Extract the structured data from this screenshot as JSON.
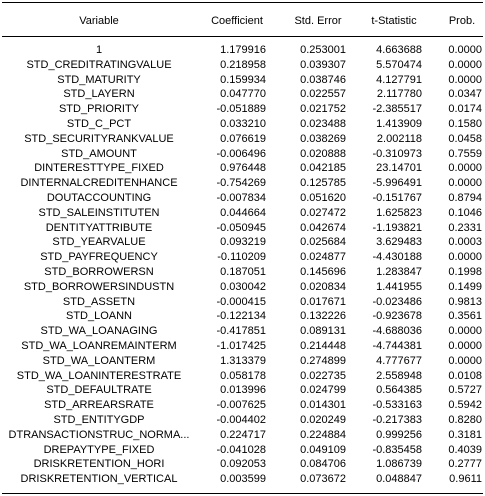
{
  "table": {
    "headers": {
      "variable": "Variable",
      "coefficient": "Coefficient",
      "std_error": "Std. Error",
      "t_statistic": "t-Statistic",
      "prob": "Prob."
    },
    "rows": [
      [
        "1",
        "1.179916",
        "0.253001",
        "4.663688",
        "0.0000"
      ],
      [
        "STD_CREDITRATINGVALUE",
        "0.218958",
        "0.039307",
        "5.570474",
        "0.0000"
      ],
      [
        "STD_MATURITY",
        "0.159934",
        "0.038746",
        "4.127791",
        "0.0000"
      ],
      [
        "STD_LAYERN",
        "0.047770",
        "0.022557",
        "2.117780",
        "0.0347"
      ],
      [
        "STD_PRIORITY",
        "-0.051889",
        "0.021752",
        "-2.385517",
        "0.0174"
      ],
      [
        "STD_C_PCT",
        "0.033210",
        "0.023488",
        "1.413909",
        "0.1580"
      ],
      [
        "STD_SECURITYRANKVALUE",
        "0.076619",
        "0.038269",
        "2.002118",
        "0.0458"
      ],
      [
        "STD_AMOUNT",
        "-0.006496",
        "0.020888",
        "-0.310973",
        "0.7559"
      ],
      [
        "DINTERESTTYPE_FIXED",
        "0.976448",
        "0.042185",
        "23.14701",
        "0.0000"
      ],
      [
        "DINTERNALCREDITENHANCE",
        "-0.754269",
        "0.125785",
        "-5.996491",
        "0.0000"
      ],
      [
        "DOUTACCOUNTING",
        "-0.007834",
        "0.051620",
        "-0.151767",
        "0.8794"
      ],
      [
        "STD_SALEINSTITUTEN",
        "0.044664",
        "0.027472",
        "1.625823",
        "0.1046"
      ],
      [
        "DENTITYATTRIBUTE",
        "-0.050945",
        "0.042674",
        "-1.193821",
        "0.2331"
      ],
      [
        "STD_YEARVALUE",
        "0.093219",
        "0.025684",
        "3.629483",
        "0.0003"
      ],
      [
        "STD_PAYFREQUENCY",
        "-0.110209",
        "0.024877",
        "-4.430188",
        "0.0000"
      ],
      [
        "STD_BORROWERSN",
        "0.187051",
        "0.145696",
        "1.283847",
        "0.1998"
      ],
      [
        "STD_BORROWERSINDUSTN",
        "0.030042",
        "0.020834",
        "1.441955",
        "0.1499"
      ],
      [
        "STD_ASSETN",
        "-0.000415",
        "0.017671",
        "-0.023486",
        "0.9813"
      ],
      [
        "STD_LOANN",
        "-0.122134",
        "0.132226",
        "-0.923678",
        "0.3561"
      ],
      [
        "STD_WA_LOANAGING",
        "-0.417851",
        "0.089131",
        "-4.688036",
        "0.0000"
      ],
      [
        "STD_WA_LOANREMAINTERM",
        "-1.017425",
        "0.214448",
        "-4.744381",
        "0.0000"
      ],
      [
        "STD_WA_LOANTERM",
        "1.313379",
        "0.274899",
        "4.777677",
        "0.0000"
      ],
      [
        "STD_WA_LOANINTERESTRATE",
        "0.058178",
        "0.022735",
        "2.558948",
        "0.0108"
      ],
      [
        "STD_DEFAULTRATE",
        "0.013996",
        "0.024799",
        "0.564385",
        "0.5727"
      ],
      [
        "STD_ARREARSRATE",
        "-0.007625",
        "0.014301",
        "-0.533163",
        "0.5942"
      ],
      [
        "STD_ENTITYGDP",
        "-0.004402",
        "0.020249",
        "-0.217383",
        "0.8280"
      ],
      [
        "DTRANSACTIONSTRUC_NORMA...",
        "0.224717",
        "0.224884",
        "0.999256",
        "0.3181"
      ],
      [
        "DREPAYTYPE_FIXED",
        "-0.041028",
        "0.049109",
        "-0.835458",
        "0.4039"
      ],
      [
        "DRISKRETENTION_HORI",
        "0.092053",
        "0.084706",
        "1.086739",
        "0.2777"
      ],
      [
        "DRISKRETENTION_VERTICAL",
        "0.003599",
        "0.073672",
        "0.048847",
        "0.9611"
      ]
    ]
  }
}
